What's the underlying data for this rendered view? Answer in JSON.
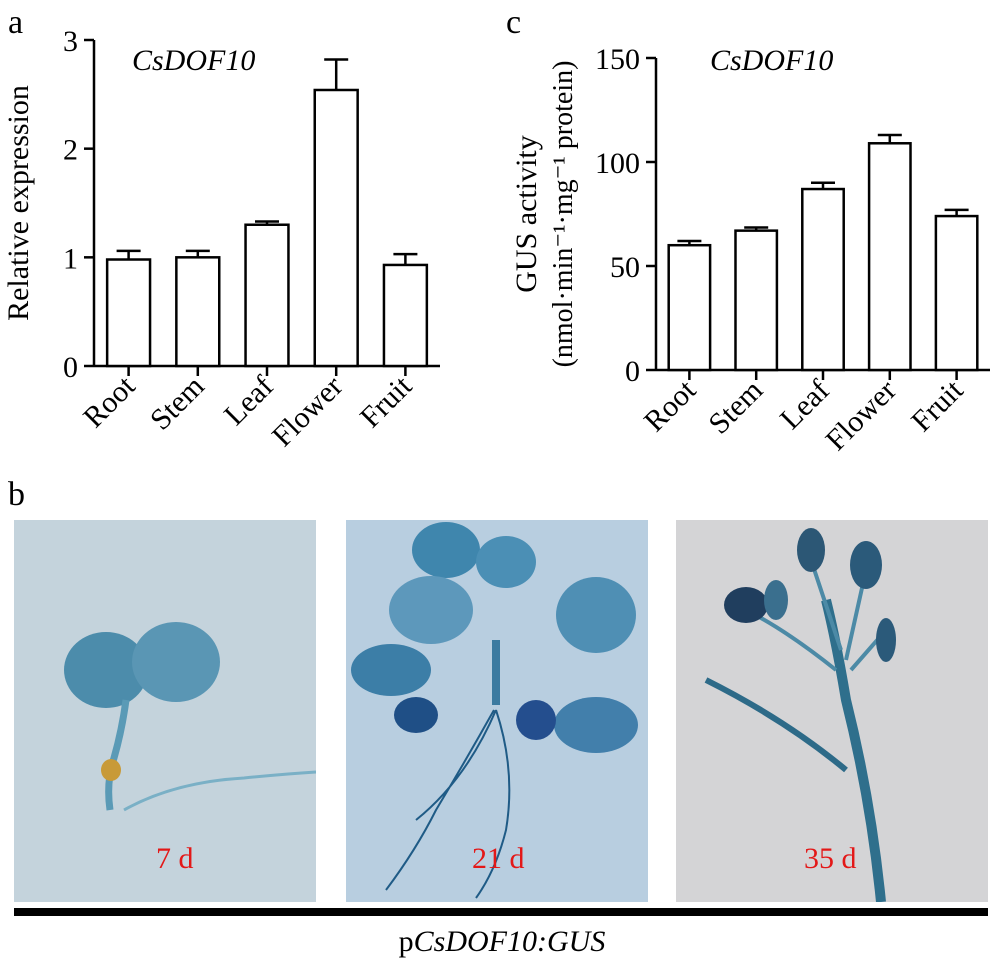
{
  "panels": {
    "a": "a",
    "b": "b",
    "c": "c"
  },
  "chart_data": [
    {
      "type": "bar",
      "panel": "a",
      "title": "CsDOF10",
      "ylabel": "Relative expression",
      "xlabel": "",
      "categories": [
        "Root",
        "Stem",
        "Leaf",
        "Flower",
        "Fruit"
      ],
      "values": [
        0.98,
        1.0,
        1.3,
        2.54,
        0.93
      ],
      "errors": [
        0.08,
        0.06,
        0.03,
        0.28,
        0.1
      ],
      "ylim": [
        0,
        3
      ],
      "yticks": [
        0,
        1,
        2,
        3
      ],
      "grid": false
    },
    {
      "type": "bar",
      "panel": "c",
      "title": "CsDOF10",
      "ylabel_line1": "GUS activity",
      "ylabel_line2": "(nmol·min⁻¹·mg⁻¹ protein)",
      "xlabel": "",
      "categories": [
        "Root",
        "Stem",
        "Leaf",
        "Flower",
        "Fruit"
      ],
      "values": [
        60,
        67,
        87,
        109,
        74
      ],
      "errors": [
        2,
        1.5,
        3,
        4,
        3
      ],
      "ylim": [
        0,
        150
      ],
      "yticks": [
        0,
        50,
        100,
        150
      ],
      "grid": false
    }
  ],
  "photos": [
    {
      "label": "7 d",
      "colors": {
        "bg": "#c3d2dc",
        "plant": "#4a88a8"
      }
    },
    {
      "label": "21 d",
      "colors": {
        "bg": "#b7cde0",
        "plant": "#3e7fa6"
      }
    },
    {
      "label": "35 d",
      "colors": {
        "bg": "#d3d3d6",
        "plant": "#2f6f8c"
      }
    }
  ],
  "construct": {
    "prefix": "p",
    "gene": "CsDOF10:GUS"
  },
  "label_color": "#e31818"
}
